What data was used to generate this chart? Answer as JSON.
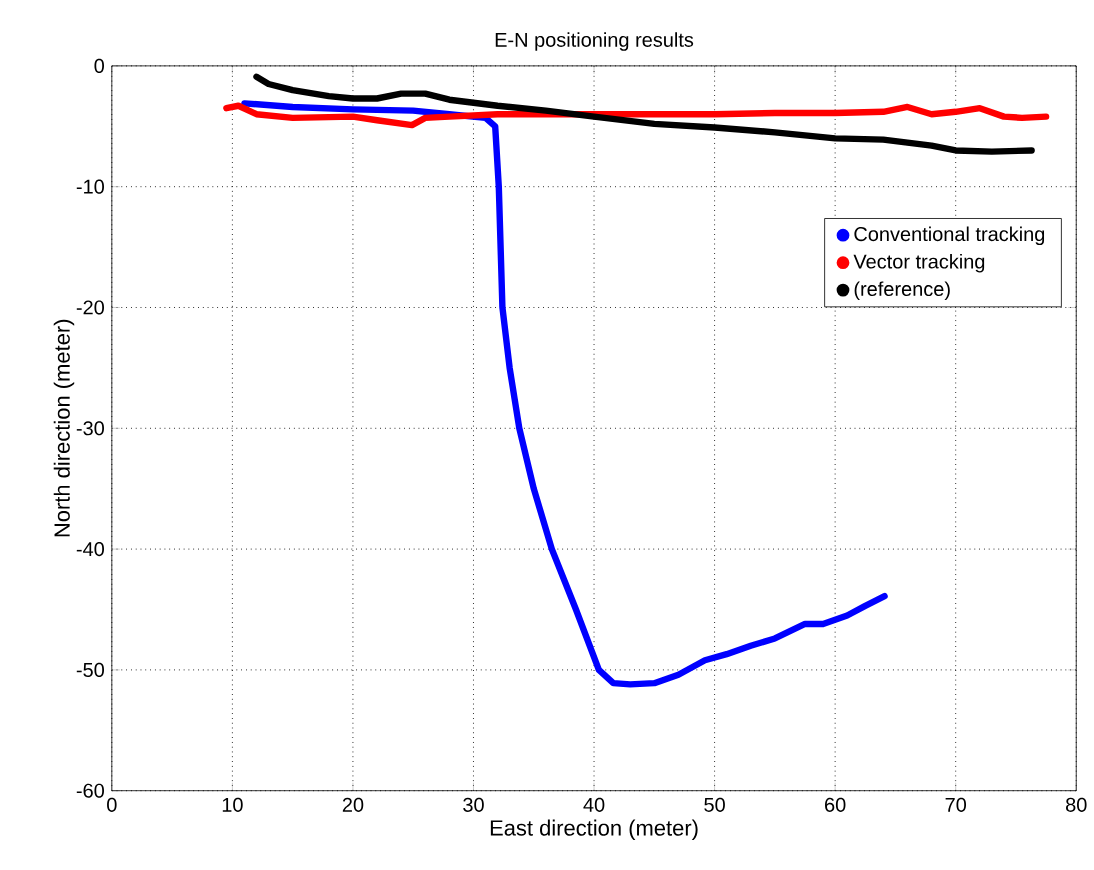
{
  "chart_data": {
    "type": "line",
    "title": "E-N positioning results",
    "xlabel": "East direction (meter)",
    "ylabel": "North direction (meter)",
    "xlim": [
      0,
      80
    ],
    "ylim": [
      -60,
      0
    ],
    "xticks": [
      0,
      10,
      20,
      30,
      40,
      50,
      60,
      70,
      80
    ],
    "yticks": [
      -60,
      -50,
      -40,
      -30,
      -20,
      -10,
      0
    ],
    "grid": true,
    "legend": "top right",
    "line_style": "solid",
    "series": [
      {
        "name": "Conventional tracking",
        "color": "#0000ff",
        "x": [
          11,
          15,
          20,
          25,
          28,
          31,
          31.8,
          32.1,
          32.4,
          33,
          33.8,
          35,
          36.5,
          38.5,
          40.4,
          41.6,
          43,
          45,
          47,
          49.2,
          51,
          53,
          55,
          57.5,
          59,
          61,
          62.5,
          64.1
        ],
        "values": [
          -3.1,
          -3.4,
          -3.6,
          -3.7,
          -4,
          -4.3,
          -5,
          -10,
          -20,
          -25,
          -30,
          -35,
          -40,
          -45,
          -50,
          -51.1,
          -51.2,
          -51.1,
          -50.4,
          -49.2,
          -48.7,
          -48,
          -47.4,
          -46.2,
          -46.2,
          -45.5,
          -44.7,
          -43.9
        ]
      },
      {
        "name": "Vector tracking",
        "color": "#ff0000",
        "x": [
          9.5,
          10.5,
          12,
          15,
          20,
          22,
          24.9,
          26,
          28,
          32,
          36,
          40,
          45,
          50,
          55,
          60,
          64,
          66,
          68,
          70,
          72,
          74,
          75.5,
          77.5
        ],
        "values": [
          -3.5,
          -3.3,
          -4,
          -4.3,
          -4.2,
          -4.5,
          -4.9,
          -4.3,
          -4.2,
          -4,
          -4,
          -4,
          -4,
          -4,
          -3.9,
          -3.9,
          -3.8,
          -3.4,
          -4,
          -3.8,
          -3.5,
          -4.2,
          -4.3,
          -4.2
        ]
      },
      {
        "name": "(reference)",
        "color": "#000000",
        "x": [
          12,
          13,
          15,
          18,
          20,
          22,
          24,
          26,
          28,
          32,
          36,
          40,
          45,
          50,
          55,
          60,
          64,
          68,
          70,
          73,
          76.3
        ],
        "values": [
          -0.9,
          -1.5,
          -2,
          -2.5,
          -2.7,
          -2.7,
          -2.3,
          -2.3,
          -2.8,
          -3.3,
          -3.7,
          -4.2,
          -4.8,
          -5.1,
          -5.5,
          -6,
          -6.1,
          -6.6,
          -7,
          -7.1,
          -7
        ]
      }
    ]
  }
}
